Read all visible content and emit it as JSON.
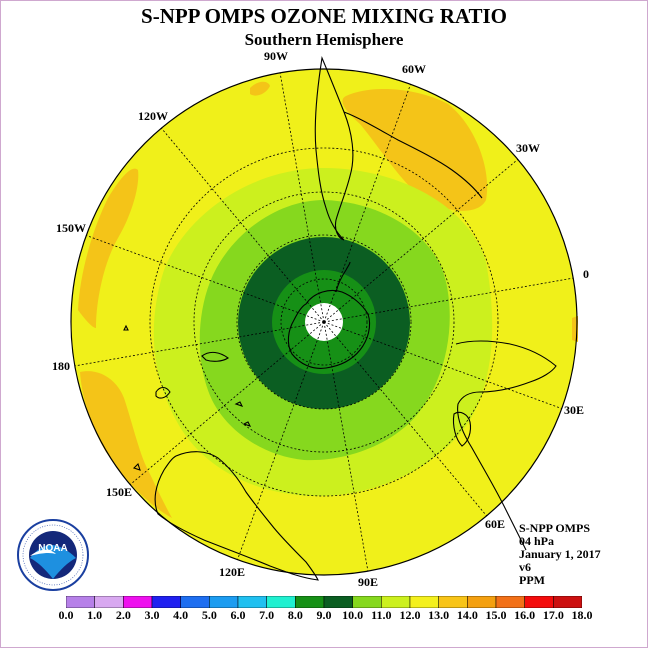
{
  "title": "S-NPP OMPS OZONE MIXING RATIO",
  "subtitle": "Southern Hemisphere",
  "info": {
    "instrument": "S-NPP OMPS",
    "level": "04 hPa",
    "date": "January 1, 2017",
    "version": "v6",
    "units": "PPM"
  },
  "longitude_labels": [
    "0",
    "30E",
    "60E",
    "90E",
    "120E",
    "150E",
    "180",
    "150W",
    "120W",
    "90W",
    "60W",
    "30W"
  ],
  "colorbar": {
    "ticks": [
      "0.0",
      "1.0",
      "2.0",
      "3.0",
      "4.0",
      "5.0",
      "6.0",
      "7.0",
      "8.0",
      "9.0",
      "10.0",
      "11.0",
      "12.0",
      "13.0",
      "14.0",
      "15.0",
      "16.0",
      "17.0",
      "18.0"
    ],
    "colors": [
      "#b680e8",
      "#d8a8f0",
      "#ee10ee",
      "#2020f0",
      "#1e6ef0",
      "#1c9cf0",
      "#20c0f0",
      "#20f0d0",
      "#169016",
      "#0b5e22",
      "#86d81e",
      "#ccf01e",
      "#f4f01e",
      "#f8c418",
      "#f4a010",
      "#f27018",
      "#f40c0c",
      "#cc1010"
    ]
  },
  "logo_text": "NOAA",
  "logo_ring_text": "NATIONAL OCEANIC AND ATMOSPHERIC ADMINISTRATION · U.S. DEPARTMENT OF COMMERCE",
  "map_colors": {
    "background_disk": "#f0f01a",
    "band_13_14": "#f4c418",
    "band_11_12": "#ccf01e",
    "band_10_11": "#86d81e",
    "band_9_10": "#0b5e22",
    "band_8_9": "#169016",
    "no_data": "#ffffff"
  }
}
